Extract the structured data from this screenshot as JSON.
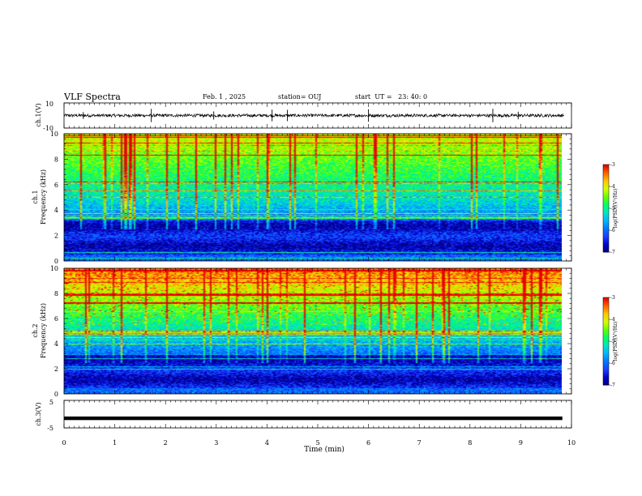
{
  "header": {
    "title": "VLF Spectra",
    "date": "Feb. 1 , 2025",
    "station": "station= OUJ",
    "start": "start  UT =   23: 40: 0"
  },
  "colors": {
    "palette": [
      "#00007a",
      "#0000c8",
      "#1e3cff",
      "#0078ff",
      "#00b4ff",
      "#00e6c8",
      "#00ff64",
      "#64ff00",
      "#d2ff00",
      "#ffc800",
      "#ff6400",
      "#e60000"
    ],
    "waveform": "#000000",
    "frame": "#000000"
  },
  "chart_data": [
    {
      "type": "line",
      "panel": "ch1_waveform",
      "ylabel": "ch.1(V)",
      "ylim": [
        -10,
        10
      ],
      "yticks": [
        "10",
        "-10"
      ],
      "xlim": [
        0,
        10
      ],
      "baseline": 0,
      "noise_amplitude": 1.2,
      "spikes_x": [
        0.38,
        1.72,
        2.95,
        4.1,
        4.4,
        6.0,
        8.45,
        8.95
      ]
    },
    {
      "type": "heatmap",
      "panel": "ch1_spectrogram",
      "ylabel_lines": [
        "ch.1",
        "Frequency (kHz)"
      ],
      "ylim": [
        0,
        10
      ],
      "yticks": [
        "0",
        "2",
        "4",
        "6",
        "8",
        "10"
      ],
      "xlim": [
        0,
        10
      ],
      "x_extent": 9.8,
      "colorbar": {
        "label": "log(PSD)(V²/Hz)",
        "range": [
          -7,
          -3
        ],
        "ticks": [
          "-3",
          "-4",
          "-5",
          "-6",
          "-7"
        ]
      }
    },
    {
      "type": "heatmap",
      "panel": "ch2_spectrogram",
      "ylabel_lines": [
        "ch.2",
        "Frequency (kHz)"
      ],
      "ylim": [
        0,
        10
      ],
      "yticks": [
        "0",
        "2",
        "4",
        "6",
        "8",
        "10"
      ],
      "xlim": [
        0,
        10
      ],
      "x_extent": 9.8,
      "colorbar": {
        "label": "log(PSD)(V²/Hz)",
        "range": [
          -7,
          -3
        ],
        "ticks": [
          "-3",
          "-4",
          "-5",
          "-6",
          "-7"
        ]
      }
    },
    {
      "type": "line",
      "panel": "ch3_waveform",
      "ylabel": "ch.3(V)",
      "ylim": [
        -5,
        5
      ],
      "yticks": [
        "5",
        "-5"
      ],
      "xlim": [
        0,
        10
      ],
      "baseline": -1.5,
      "xlabel": "Time (min)",
      "xticks": [
        "0",
        "1",
        "2",
        "3",
        "4",
        "5",
        "6",
        "7",
        "8",
        "9",
        "10"
      ]
    }
  ]
}
